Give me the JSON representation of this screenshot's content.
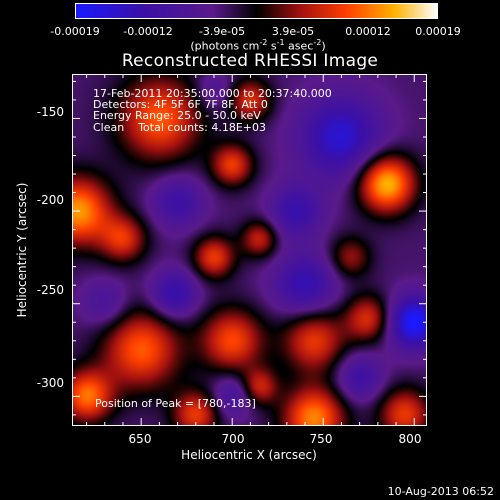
{
  "colorbar": {
    "tick_labels": [
      "-0.00019",
      "-0.00012",
      "-3.9e-05",
      "3.9e-05",
      "0.00012",
      "0.00019"
    ],
    "unit_pre": "(photons cm",
    "unit_exp1": "-2",
    "unit_mid": " s",
    "unit_exp2": "-1",
    "unit_mid2": " asec",
    "unit_exp3": "-2",
    "unit_post": ")",
    "colors": [
      "#1a1aff",
      "#3a10a8",
      "#5a1a8a",
      "#000000",
      "#a01010",
      "#ff4000",
      "#ffb000",
      "#ffffff"
    ]
  },
  "info": {
    "line1": "17-Feb-2011 20:35:00.000 to 20:37:40.000",
    "line2": "Detectors: 4F 5F 6F 7F 8F, Att 0",
    "line3": "Energy Range: 25.0 - 50.0 keV",
    "line4": "Clean    Total counts: 4.18E+03",
    "peak": "Position of Peak = [780,-183]"
  },
  "footer": {
    "timestamp": "10-Aug-2013 06:52"
  },
  "chart_data": {
    "type": "heatmap",
    "title": "Reconstructed RHESSI Image",
    "xlabel": "Heliocentric X (arcsec)",
    "ylabel": "Heliocentric Y (arcsec)",
    "xlim": [
      612,
      807
    ],
    "ylim": [
      -316,
      -126
    ],
    "xticks": [
      650,
      700,
      750,
      800
    ],
    "yticks": [
      -150,
      -200,
      -250,
      -300
    ],
    "clim": [
      -0.00019,
      0.00019
    ],
    "blobs": [
      {
        "x": 785,
        "y": -185,
        "w": 0.00019,
        "s": 11
      },
      {
        "x": 615,
        "y": -200,
        "w": 0.00017,
        "s": 13
      },
      {
        "x": 660,
        "y": -150,
        "w": 0.00014,
        "s": 16
      },
      {
        "x": 700,
        "y": -175,
        "w": 0.00012,
        "s": 8
      },
      {
        "x": 640,
        "y": -215,
        "w": 0.00011,
        "s": 9
      },
      {
        "x": 690,
        "y": -225,
        "w": 0.00012,
        "s": 8
      },
      {
        "x": 715,
        "y": -215,
        "w": 0.0001,
        "s": 7
      },
      {
        "x": 650,
        "y": -275,
        "w": 0.00014,
        "s": 15
      },
      {
        "x": 700,
        "y": -270,
        "w": 0.00013,
        "s": 12
      },
      {
        "x": 745,
        "y": -270,
        "w": 0.00012,
        "s": 12
      },
      {
        "x": 775,
        "y": -258,
        "w": 0.00011,
        "s": 9
      },
      {
        "x": 620,
        "y": -300,
        "w": 0.00015,
        "s": 10
      },
      {
        "x": 680,
        "y": -310,
        "w": 0.00012,
        "s": 9
      },
      {
        "x": 745,
        "y": -312,
        "w": 0.00016,
        "s": 12
      },
      {
        "x": 795,
        "y": -310,
        "w": 0.00012,
        "s": 10
      },
      {
        "x": 710,
        "y": -140,
        "w": 0.00011,
        "s": 8
      },
      {
        "x": 715,
        "y": -295,
        "w": 0.0001,
        "s": 7
      },
      {
        "x": 765,
        "y": -225,
        "w": 8e-05,
        "s": 8
      },
      {
        "x": 760,
        "y": -160,
        "w": -0.00012,
        "s": 16
      },
      {
        "x": 735,
        "y": -200,
        "w": -9e-05,
        "s": 10
      },
      {
        "x": 800,
        "y": -260,
        "w": -0.00016,
        "s": 10
      },
      {
        "x": 740,
        "y": -240,
        "w": -0.0001,
        "s": 12
      },
      {
        "x": 670,
        "y": -195,
        "w": -8e-05,
        "s": 10
      },
      {
        "x": 668,
        "y": -245,
        "w": -0.0001,
        "s": 9
      },
      {
        "x": 700,
        "y": -300,
        "w": -7e-05,
        "s": 8
      },
      {
        "x": 630,
        "y": -250,
        "w": -6e-05,
        "s": 9
      },
      {
        "x": 770,
        "y": -290,
        "w": -8e-05,
        "s": 9
      },
      {
        "x": 690,
        "y": -135,
        "w": -5e-05,
        "s": 7
      }
    ]
  }
}
